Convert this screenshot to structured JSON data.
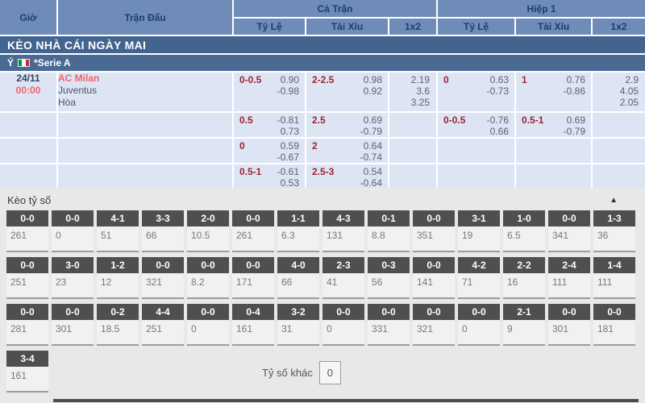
{
  "colors": {
    "header_bg": "#6e8cb7",
    "header_text": "#1f3c6d",
    "section_bar_bg": "#42648f",
    "league_bar_bg": "#4a6a94",
    "row_bg": "#dde5f4",
    "accent_red": "#f2626d",
    "handicap_red": "#9e2335",
    "odds_gray": "#596273",
    "panel_bg": "#e8e8e8",
    "score_box_header_bg": "#4f4f4f",
    "flag_green": "#009246",
    "flag_white": "#ffffff",
    "flag_red": "#ce2b37"
  },
  "odds_table": {
    "columns": {
      "time": "Giờ",
      "match": "Trận Đấu",
      "full_time": "Cả Trận",
      "first_half": "Hiệp 1",
      "handicap": "Tỷ Lệ",
      "over_under": "Tài Xỉu",
      "one_x_two": "1x2"
    },
    "section_title": "KÈO NHÀ CÁI NGÀY MAI",
    "league": {
      "country": "Ý",
      "name": "*Serie A",
      "flag_icon": "italy-flag"
    },
    "match": {
      "date": "24/11",
      "time": "00:00",
      "home": "AC Milan",
      "away": "Juventus",
      "draw_label": "Hòa"
    },
    "odds_rows": [
      {
        "ft_hdp_line": "0-0.5",
        "ft_hdp_odds": [
          "0.90",
          "-0.98"
        ],
        "ft_ou_line": "2-2.5",
        "ft_ou_odds": [
          "0.98",
          "0.92"
        ],
        "ft_1x2": [
          "2.19",
          "3.6",
          "3.25"
        ],
        "h1_hdp_line": "0",
        "h1_hdp_odds": [
          "0.63",
          "-0.73"
        ],
        "h1_ou_line": "1",
        "h1_ou_odds": [
          "0.76",
          "-0.86"
        ],
        "h1_1x2": [
          "2.9",
          "4.05",
          "2.05"
        ]
      },
      {
        "ft_hdp_line": "0.5",
        "ft_hdp_odds": [
          "-0.81",
          "0.73"
        ],
        "ft_ou_line": "2.5",
        "ft_ou_odds": [
          "0.69",
          "-0.79"
        ],
        "ft_1x2": [],
        "h1_hdp_line": "0-0.5",
        "h1_hdp_odds": [
          "-0.76",
          "0.66"
        ],
        "h1_ou_line": "0.5-1",
        "h1_ou_odds": [
          "0.69",
          "-0.79"
        ],
        "h1_1x2": []
      },
      {
        "ft_hdp_line": "0",
        "ft_hdp_odds": [
          "0.59",
          "-0.67"
        ],
        "ft_ou_line": "2",
        "ft_ou_odds": [
          "0.64",
          "-0.74"
        ],
        "ft_1x2": [],
        "h1_hdp_line": "",
        "h1_hdp_odds": [],
        "h1_ou_line": "",
        "h1_ou_odds": [],
        "h1_1x2": []
      },
      {
        "ft_hdp_line": "0.5-1",
        "ft_hdp_odds": [
          "-0.61",
          "0.53"
        ],
        "ft_ou_line": "2.5-3",
        "ft_ou_odds": [
          "0.54",
          "-0.64"
        ],
        "ft_1x2": [],
        "h1_hdp_line": "",
        "h1_hdp_odds": [],
        "h1_ou_line": "",
        "h1_ou_odds": [],
        "h1_1x2": []
      }
    ]
  },
  "score_panel": {
    "title": "Kèo tỷ số",
    "collapse_icon": "▲",
    "other_score_label": "Tỷ số khác",
    "other_score_value": "0",
    "score_rows": [
      [
        {
          "score": "0-0",
          "odds": "261"
        },
        {
          "score": "0-0",
          "odds": "0"
        },
        {
          "score": "4-1",
          "odds": "51"
        },
        {
          "score": "3-3",
          "odds": "66"
        },
        {
          "score": "2-0",
          "odds": "10.5"
        },
        {
          "score": "0-0",
          "odds": "261"
        },
        {
          "score": "1-1",
          "odds": "6.3"
        },
        {
          "score": "4-3",
          "odds": "131"
        },
        {
          "score": "0-1",
          "odds": "8.8"
        },
        {
          "score": "0-0",
          "odds": "351"
        },
        {
          "score": "3-1",
          "odds": "19"
        },
        {
          "score": "1-0",
          "odds": "6.5"
        },
        {
          "score": "0-0",
          "odds": "341"
        },
        {
          "score": "1-3",
          "odds": "36"
        }
      ],
      [
        {
          "score": "0-0",
          "odds": "251"
        },
        {
          "score": "3-0",
          "odds": "23"
        },
        {
          "score": "1-2",
          "odds": "12"
        },
        {
          "score": "0-0",
          "odds": "321"
        },
        {
          "score": "0-0",
          "odds": "8.2"
        },
        {
          "score": "0-0",
          "odds": "171"
        },
        {
          "score": "4-0",
          "odds": "66"
        },
        {
          "score": "2-3",
          "odds": "41"
        },
        {
          "score": "0-3",
          "odds": "56"
        },
        {
          "score": "0-0",
          "odds": "141"
        },
        {
          "score": "4-2",
          "odds": "71"
        },
        {
          "score": "2-2",
          "odds": "16"
        },
        {
          "score": "2-4",
          "odds": "111"
        },
        {
          "score": "1-4",
          "odds": "111"
        }
      ],
      [
        {
          "score": "0-0",
          "odds": "281"
        },
        {
          "score": "0-0",
          "odds": "301"
        },
        {
          "score": "0-2",
          "odds": "18.5"
        },
        {
          "score": "4-4",
          "odds": "251"
        },
        {
          "score": "0-0",
          "odds": "0"
        },
        {
          "score": "0-4",
          "odds": "161"
        },
        {
          "score": "3-2",
          "odds": "31"
        },
        {
          "score": "0-0",
          "odds": "0"
        },
        {
          "score": "0-0",
          "odds": "331"
        },
        {
          "score": "0-0",
          "odds": "321"
        },
        {
          "score": "0-0",
          "odds": "0"
        },
        {
          "score": "2-1",
          "odds": "9"
        },
        {
          "score": "0-0",
          "odds": "301"
        },
        {
          "score": "0-0",
          "odds": "181"
        }
      ],
      [
        {
          "score": "3-4",
          "odds": "161"
        }
      ]
    ]
  }
}
